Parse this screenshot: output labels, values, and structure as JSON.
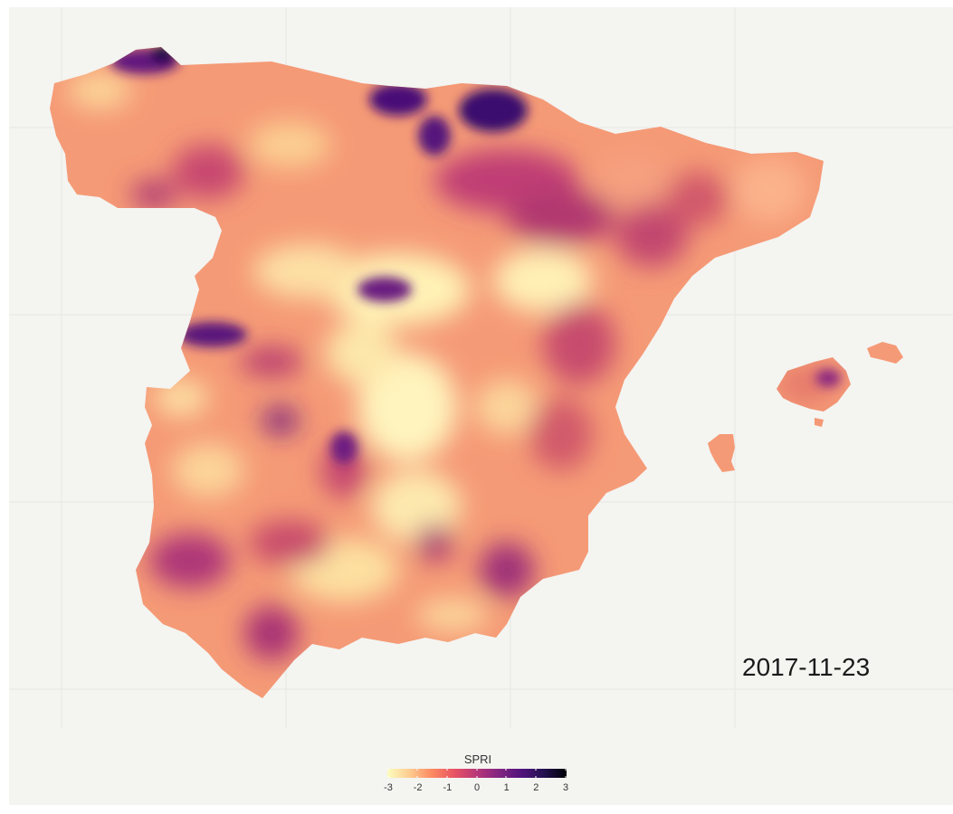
{
  "map": {
    "date": "2017-11-23",
    "variable": "SPRI",
    "region": "Iberian Peninsula (Spain) and Balearic Islands",
    "colormap": "magma (reversed)",
    "background_color": "#f4f4f1",
    "grid_color": "#e6e6e3"
  },
  "legend": {
    "title": "SPRI",
    "ticks": [
      "-3",
      "-2",
      "-1",
      "0",
      "1",
      "2",
      "3"
    ],
    "range": [
      -3,
      3
    ],
    "colors": [
      "#fcfdbf",
      "#fecc8f",
      "#fc8961",
      "#e75263",
      "#b73779",
      "#812581",
      "#51127c",
      "#221150",
      "#000004"
    ]
  }
}
